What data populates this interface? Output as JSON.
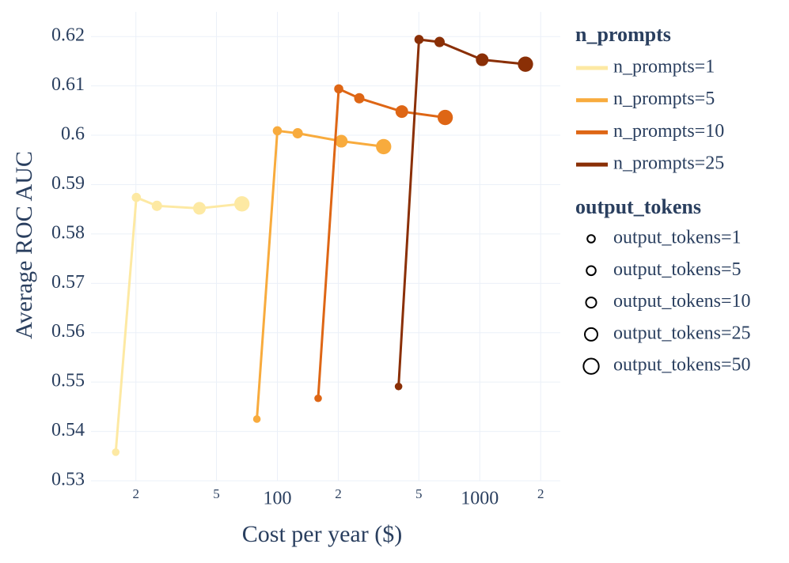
{
  "chart_data": {
    "type": "scatter-line",
    "x_label": "Cost per year ($)",
    "y_label": "Average ROC AUC",
    "xlog": true,
    "grid": true,
    "xlim": [
      12,
      2500
    ],
    "ylim": [
      0.53,
      0.625
    ],
    "xticks": [
      {
        "value": 20,
        "label": "2"
      },
      {
        "value": 50,
        "label": "5"
      },
      100,
      {
        "value": 200,
        "label": "2"
      },
      {
        "value": 500,
        "label": "5"
      },
      1000,
      {
        "value": 2000,
        "label": "2"
      }
    ],
    "yticks": [
      0.53,
      0.54,
      0.55,
      0.56,
      0.57,
      0.58,
      0.59,
      0.6,
      0.61,
      0.62
    ],
    "legend_title": "n_prompts",
    "series": [
      {
        "name": "n_prompts=1",
        "color": "#fde9a3",
        "x": [
          15.9,
          20.1,
          25.4,
          41.2,
          66.8
        ],
        "values": [
          0.5358,
          0.5874,
          0.5857,
          0.5852,
          0.5861
        ]
      },
      {
        "name": "n_prompts=5",
        "color": "#f8ab3d",
        "x": [
          79.2,
          100,
          126,
          207,
          335
        ],
        "values": [
          0.5425,
          0.6009,
          0.6004,
          0.5988,
          0.5977
        ]
      },
      {
        "name": "n_prompts=10",
        "color": "#de6615",
        "x": [
          159,
          201,
          254,
          412,
          675
        ],
        "values": [
          0.5467,
          0.6094,
          0.6075,
          0.6048,
          0.6036
        ]
      },
      {
        "name": "n_prompts=25",
        "color": "#8a2f06",
        "x": [
          397,
          501,
          633,
          1028,
          1682
        ],
        "values": [
          0.5491,
          0.6194,
          0.6189,
          0.6153,
          0.6144
        ]
      }
    ],
    "size_legend": {
      "title": "output_tokens",
      "labels": [
        "output_tokens=1",
        "output_tokens=5",
        "output_tokens=10",
        "output_tokens=25",
        "output_tokens=50"
      ],
      "values": [
        1,
        5,
        10,
        25,
        50
      ]
    }
  }
}
